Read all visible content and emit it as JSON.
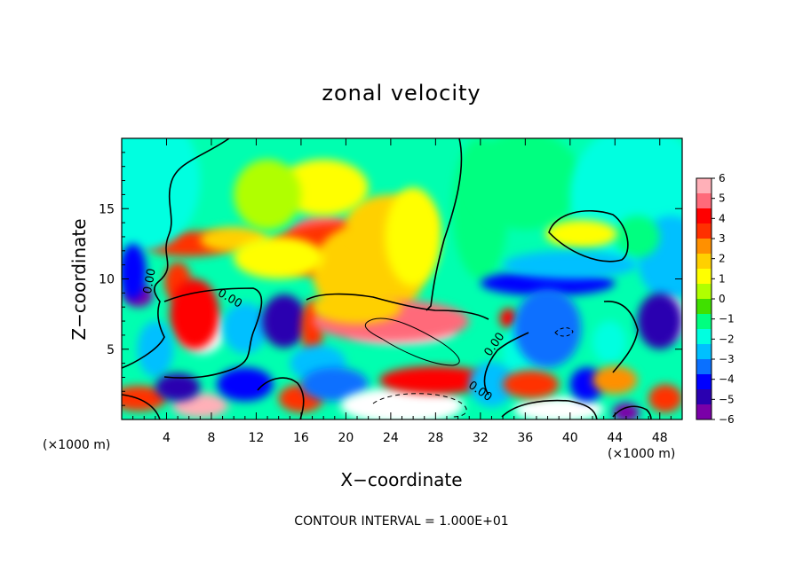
{
  "chart_data": {
    "type": "heatmap",
    "title": "zonal velocity",
    "xlabel": "X−coordinate",
    "ylabel": "Z−coordinate",
    "x_unit": "(×1000 m)",
    "x_unit_right": "(×1000 m)",
    "xlim": [
      0,
      50
    ],
    "ylim": [
      0,
      20
    ],
    "x_ticks": [
      {
        "value": 4,
        "label": "4"
      },
      {
        "value": 8,
        "label": "8"
      },
      {
        "value": 12,
        "label": "12"
      },
      {
        "value": 16,
        "label": "16"
      },
      {
        "value": 20,
        "label": "20"
      },
      {
        "value": 24,
        "label": "24"
      },
      {
        "value": 28,
        "label": "28"
      },
      {
        "value": 32,
        "label": "32"
      },
      {
        "value": 36,
        "label": "36"
      },
      {
        "value": 40,
        "label": "40"
      },
      {
        "value": 44,
        "label": "44"
      },
      {
        "value": 48,
        "label": "48"
      }
    ],
    "y_ticks": [
      {
        "value": 5,
        "label": "5"
      },
      {
        "value": 10,
        "label": "10"
      },
      {
        "value": 15,
        "label": "15"
      }
    ],
    "colorbar": {
      "min": -6,
      "max": 6,
      "labels": [
        "6",
        "5",
        "4",
        "3",
        "2",
        "1",
        "0",
        "−1",
        "−2",
        "−3",
        "−4",
        "−5",
        "−6"
      ],
      "colors": [
        "#7a00a8",
        "#2a00b0",
        "#0000ff",
        "#0a70ff",
        "#00c0ff",
        "#00ffe0",
        "#00ff80",
        "#40e000",
        "#b0ff00",
        "#ffff00",
        "#ffd000",
        "#ff9000",
        "#ff3000",
        "#ff0000",
        "#ff6a7a",
        "#ffb0b8"
      ]
    },
    "annotation": "CONTOUR INTERVAL = 1.000E+01",
    "contour_labels": [
      {
        "text": "0.00",
        "x": 2.8,
        "y": 9.8,
        "angle": -80
      },
      {
        "text": "0.00",
        "x": 9.5,
        "y": 8.4,
        "angle": 30
      },
      {
        "text": "0.00",
        "x": 33.5,
        "y": 5.2,
        "angle": -55
      },
      {
        "text": "0.00",
        "x": 31.8,
        "y": 1.8,
        "angle": 35
      }
    ],
    "features": [
      {
        "value": 4.5,
        "x": 18,
        "y": 12.7,
        "sx": 3.2,
        "sy": 1.8
      },
      {
        "value": 3.0,
        "x": 20,
        "y": 12.0,
        "sx": 7.0,
        "sy": 2.0
      },
      {
        "value": 2.0,
        "x": 22,
        "y": 10.5,
        "sx": 5.0,
        "sy": 3.5
      },
      {
        "value": 1.5,
        "x": 24,
        "y": 14.0,
        "sx": 4.0,
        "sy": 2.0
      },
      {
        "value": 3.0,
        "x": 6,
        "y": 12.5,
        "sx": 4.0,
        "sy": 0.9
      },
      {
        "value": 2.0,
        "x": 10,
        "y": 12.8,
        "sx": 3.0,
        "sy": 0.9
      },
      {
        "value": 1.0,
        "x": 14,
        "y": 11.5,
        "sx": 4.0,
        "sy": 1.5
      },
      {
        "value": 1.3,
        "x": 18,
        "y": 16.5,
        "sx": 4.0,
        "sy": 2.0
      },
      {
        "value": 1.0,
        "x": 26,
        "y": 13.0,
        "sx": 2.5,
        "sy": 3.5
      },
      {
        "value": 0.5,
        "x": 13,
        "y": 16.0,
        "sx": 3.0,
        "sy": 2.5
      },
      {
        "value": -2.0,
        "x": 2,
        "y": 17,
        "sx": 5.0,
        "sy": 5.0
      },
      {
        "value": -1.2,
        "x": 32,
        "y": 15,
        "sx": 2.5,
        "sy": 5.0
      },
      {
        "value": -1.5,
        "x": 36,
        "y": 17,
        "sx": 5.0,
        "sy": 3.5
      },
      {
        "value": -2.0,
        "x": 46,
        "y": 16,
        "sx": 6.0,
        "sy": 5.0
      },
      {
        "value": -2.5,
        "x": 49,
        "y": 11.5,
        "sx": 3.0,
        "sy": 3.0
      },
      {
        "value": -1.0,
        "x": 46,
        "y": 13,
        "sx": 2.0,
        "sy": 1.5
      },
      {
        "value": 1.0,
        "x": 41,
        "y": 13.2,
        "sx": 3.2,
        "sy": 1.0
      },
      {
        "value": -4.5,
        "x": 38,
        "y": 9.7,
        "sx": 6.0,
        "sy": 0.9
      },
      {
        "value": -3.0,
        "x": 40,
        "y": 11.0,
        "sx": 6.0,
        "sy": 1.0
      },
      {
        "value": -6.0,
        "x": 1.5,
        "y": 8.8,
        "sx": 1.3,
        "sy": 0.8
      },
      {
        "value": -4.0,
        "x": 1.0,
        "y": 10.5,
        "sx": 1.2,
        "sy": 2.0
      },
      {
        "value": 3.0,
        "x": 5.0,
        "y": 9.8,
        "sx": 1.2,
        "sy": 1.4
      },
      {
        "value": 6.5,
        "x": 7.2,
        "y": 6.3,
        "sx": 2.0,
        "sy": 1.6
      },
      {
        "value": 4.0,
        "x": 6.5,
        "y": 7.5,
        "sx": 2.2,
        "sy": 2.5
      },
      {
        "value": -3.0,
        "x": 3.0,
        "y": 5.0,
        "sx": 1.6,
        "sy": 2.0
      },
      {
        "value": -3.0,
        "x": 11.0,
        "y": 6.5,
        "sx": 2.0,
        "sy": 1.8
      },
      {
        "value": 6.5,
        "x": 14.5,
        "y": 7.0,
        "sx": 0.9,
        "sy": 0.8
      },
      {
        "value": -5.0,
        "x": 14.5,
        "y": 7.0,
        "sx": 2.0,
        "sy": 1.9
      },
      {
        "value": 3.0,
        "x": 17.0,
        "y": 6.5,
        "sx": 1.0,
        "sy": 2.0
      },
      {
        "value": -3.0,
        "x": 17.5,
        "y": 4.0,
        "sx": 2.5,
        "sy": 1.3
      },
      {
        "value": 8.0,
        "x": 25.0,
        "y": 6.3,
        "sx": 4.8,
        "sy": 0.9
      },
      {
        "value": 5.0,
        "x": 24.0,
        "y": 7.0,
        "sx": 7.0,
        "sy": 1.5
      },
      {
        "value": 2.0,
        "x": 21.0,
        "y": 8.0,
        "sx": 4.0,
        "sy": 1.2
      },
      {
        "value": 4.0,
        "x": 34.5,
        "y": 7.2,
        "sx": 0.8,
        "sy": 0.7
      },
      {
        "value": -2.0,
        "x": 36.0,
        "y": 4.5,
        "sx": 2.0,
        "sy": 2.5
      },
      {
        "value": 7.0,
        "x": 38.0,
        "y": 6.5,
        "sx": 1.6,
        "sy": 1.6
      },
      {
        "value": -3.5,
        "x": 38.0,
        "y": 6.5,
        "sx": 3.0,
        "sy": 2.8
      },
      {
        "value": 6.5,
        "x": 49.0,
        "y": 7.2,
        "sx": 1.3,
        "sy": 1.5
      },
      {
        "value": -5.0,
        "x": 48.0,
        "y": 7.0,
        "sx": 2.0,
        "sy": 2.0
      },
      {
        "value": -2.0,
        "x": 43.5,
        "y": 5.5,
        "sx": 1.5,
        "sy": 1.5
      },
      {
        "value": 3.5,
        "x": 1.5,
        "y": 1.5,
        "sx": 2.5,
        "sy": 0.9
      },
      {
        "value": 6.0,
        "x": 7.0,
        "y": 1.0,
        "sx": 2.5,
        "sy": 0.9
      },
      {
        "value": -5.0,
        "x": 5.0,
        "y": 2.3,
        "sx": 2.0,
        "sy": 1.0
      },
      {
        "value": -4.0,
        "x": 11.0,
        "y": 2.5,
        "sx": 2.5,
        "sy": 1.2
      },
      {
        "value": 3.0,
        "x": 16.0,
        "y": 1.5,
        "sx": 2.0,
        "sy": 1.0
      },
      {
        "value": -3.5,
        "x": 19.0,
        "y": 2.5,
        "sx": 3.0,
        "sy": 1.2
      },
      {
        "value": 9.0,
        "x": 25.0,
        "y": 1.0,
        "sx": 5.5,
        "sy": 1.3
      },
      {
        "value": 4.0,
        "x": 28.0,
        "y": 2.8,
        "sx": 5.0,
        "sy": 1.0
      },
      {
        "value": -3.0,
        "x": 33.0,
        "y": 2.5,
        "sx": 2.0,
        "sy": 1.6
      },
      {
        "value": 7.0,
        "x": 39.0,
        "y": 0.7,
        "sx": 4.0,
        "sy": 0.9
      },
      {
        "value": 3.0,
        "x": 36.5,
        "y": 2.5,
        "sx": 2.5,
        "sy": 1.0
      },
      {
        "value": -4.0,
        "x": 41.5,
        "y": 2.5,
        "sx": 1.5,
        "sy": 1.2
      },
      {
        "value": 2.5,
        "x": 44.0,
        "y": 2.8,
        "sx": 2.0,
        "sy": 1.0
      },
      {
        "value": -6.0,
        "x": 45.0,
        "y": 0.5,
        "sx": 1.2,
        "sy": 0.7
      },
      {
        "value": 3.0,
        "x": 48.5,
        "y": 1.5,
        "sx": 1.5,
        "sy": 1.0
      }
    ]
  }
}
